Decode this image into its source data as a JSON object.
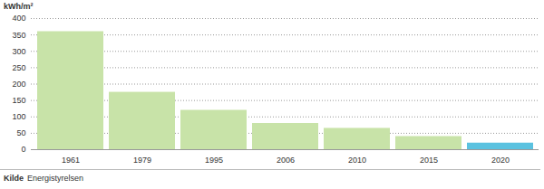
{
  "chart_data": {
    "type": "bar",
    "y_label": "kWh/m²",
    "categories": [
      "1961",
      "1979",
      "1995",
      "2006",
      "2010",
      "2015",
      "2020"
    ],
    "values": [
      360,
      175,
      120,
      80,
      65,
      40,
      20
    ],
    "colors": [
      "#c8e3a8",
      "#c8e3a8",
      "#c8e3a8",
      "#c8e3a8",
      "#c8e3a8",
      "#c8e3a8",
      "#5bc2e0"
    ],
    "ylim": [
      0,
      400
    ],
    "yticks": [
      0,
      50,
      100,
      150,
      200,
      250,
      300,
      350,
      400
    ],
    "grid": true,
    "source_label": "Kilde",
    "source": "Energistyrelsen"
  }
}
